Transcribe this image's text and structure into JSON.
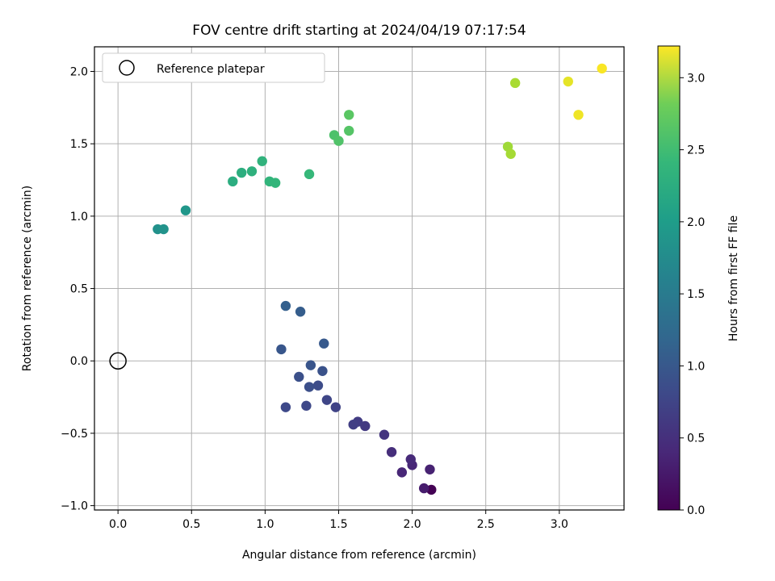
{
  "chart_data": {
    "type": "scatter",
    "title": "FOV centre drift starting at 2024/04/19 07:17:54",
    "xlabel": "Angular distance from reference (arcmin)",
    "ylabel": "Rotation from reference (arcmin)",
    "xlim": [
      -0.16,
      3.44
    ],
    "ylim": [
      -1.03,
      2.17
    ],
    "xticks": [
      0.0,
      0.5,
      1.0,
      1.5,
      2.0,
      2.5,
      3.0
    ],
    "xtick_labels": [
      "0.0",
      "0.5",
      "1.0",
      "1.5",
      "2.0",
      "2.5",
      "3.0"
    ],
    "yticks": [
      -1.0,
      -0.5,
      0.0,
      0.5,
      1.0,
      1.5,
      2.0
    ],
    "ytick_labels": [
      "−1.0",
      "−0.5",
      "0.0",
      "0.5",
      "1.0",
      "1.5",
      "2.0"
    ],
    "grid": true,
    "legend": {
      "position": "upper-left",
      "entries": [
        {
          "label": "Reference platepar",
          "marker": "open-circle"
        }
      ]
    },
    "reference_point": {
      "x": 0.0,
      "y": 0.0
    },
    "colorbar": {
      "label": "Hours from first FF file",
      "colormap": "viridis",
      "range": [
        0.0,
        3.22
      ],
      "ticks": [
        0.0,
        0.5,
        1.0,
        1.5,
        2.0,
        2.5,
        3.0
      ],
      "tick_labels": [
        "0.0",
        "0.5",
        "1.0",
        "1.5",
        "2.0",
        "2.5",
        "3.0"
      ]
    },
    "series": [
      {
        "color_by": "hours",
        "points": [
          {
            "x": 2.13,
            "y": -0.89,
            "hours": 0.0
          },
          {
            "x": 2.08,
            "y": -0.88,
            "hours": 0.25
          },
          {
            "x": 2.12,
            "y": -0.75,
            "hours": 0.3
          },
          {
            "x": 1.93,
            "y": -0.77,
            "hours": 0.35
          },
          {
            "x": 2.0,
            "y": -0.72,
            "hours": 0.35
          },
          {
            "x": 1.99,
            "y": -0.68,
            "hours": 0.38
          },
          {
            "x": 1.86,
            "y": -0.63,
            "hours": 0.42
          },
          {
            "x": 1.81,
            "y": -0.51,
            "hours": 0.5
          },
          {
            "x": 1.68,
            "y": -0.45,
            "hours": 0.55
          },
          {
            "x": 1.63,
            "y": -0.42,
            "hours": 0.58
          },
          {
            "x": 1.6,
            "y": -0.44,
            "hours": 0.6
          },
          {
            "x": 1.48,
            "y": -0.32,
            "hours": 0.65
          },
          {
            "x": 1.42,
            "y": -0.27,
            "hours": 0.68
          },
          {
            "x": 1.28,
            "y": -0.31,
            "hours": 0.7
          },
          {
            "x": 1.14,
            "y": -0.32,
            "hours": 0.72
          },
          {
            "x": 1.36,
            "y": -0.17,
            "hours": 0.75
          },
          {
            "x": 1.3,
            "y": -0.18,
            "hours": 0.78
          },
          {
            "x": 1.23,
            "y": -0.11,
            "hours": 0.8
          },
          {
            "x": 1.39,
            "y": -0.07,
            "hours": 0.82
          },
          {
            "x": 1.31,
            "y": -0.03,
            "hours": 0.85
          },
          {
            "x": 1.11,
            "y": 0.08,
            "hours": 0.87
          },
          {
            "x": 1.4,
            "y": 0.12,
            "hours": 0.9
          },
          {
            "x": 1.24,
            "y": 0.34,
            "hours": 0.95
          },
          {
            "x": 1.14,
            "y": 0.38,
            "hours": 0.98
          },
          {
            "x": 0.27,
            "y": 0.91,
            "hours": 1.62
          },
          {
            "x": 0.31,
            "y": 0.91,
            "hours": 1.65
          },
          {
            "x": 0.46,
            "y": 1.04,
            "hours": 1.7
          },
          {
            "x": 0.78,
            "y": 1.24,
            "hours": 2.0
          },
          {
            "x": 0.84,
            "y": 1.3,
            "hours": 2.02
          },
          {
            "x": 0.91,
            "y": 1.31,
            "hours": 2.05
          },
          {
            "x": 0.98,
            "y": 1.38,
            "hours": 2.08
          },
          {
            "x": 1.03,
            "y": 1.24,
            "hours": 2.1
          },
          {
            "x": 1.07,
            "y": 1.23,
            "hours": 2.12
          },
          {
            "x": 1.3,
            "y": 1.29,
            "hours": 2.15
          },
          {
            "x": 1.47,
            "y": 1.56,
            "hours": 2.3
          },
          {
            "x": 1.5,
            "y": 1.52,
            "hours": 2.32
          },
          {
            "x": 1.57,
            "y": 1.59,
            "hours": 2.35
          },
          {
            "x": 1.57,
            "y": 1.7,
            "hours": 2.38
          },
          {
            "x": 2.65,
            "y": 1.48,
            "hours": 2.75
          },
          {
            "x": 2.67,
            "y": 1.43,
            "hours": 2.78
          },
          {
            "x": 2.7,
            "y": 1.92,
            "hours": 2.8
          },
          {
            "x": 3.06,
            "y": 1.93,
            "hours": 3.1
          },
          {
            "x": 3.13,
            "y": 1.7,
            "hours": 3.15
          },
          {
            "x": 3.29,
            "y": 2.02,
            "hours": 3.2
          }
        ]
      }
    ]
  }
}
